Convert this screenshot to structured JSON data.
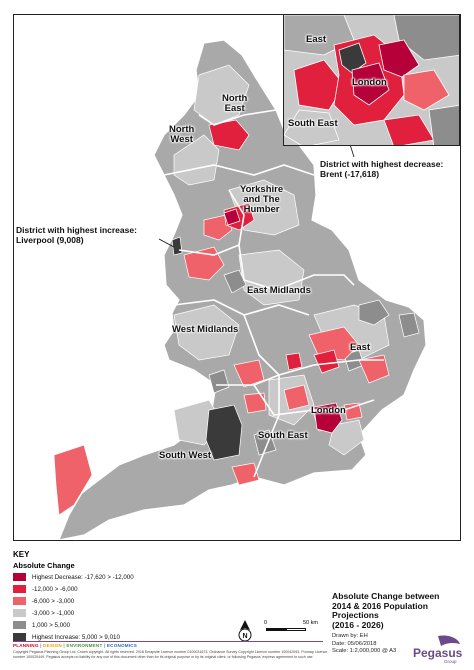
{
  "regions": {
    "north_east": "North\nEast",
    "north_west": "North\nWest",
    "yorkshire": "Yorkshire\nand The\nHumber",
    "east_midlands": "East Midlands",
    "west_midlands": "West Midlands",
    "east": "East",
    "london": "London",
    "south_east": "South East",
    "south_west": "South West"
  },
  "inset_labels": {
    "east": "East",
    "london": "London",
    "south_east": "South East"
  },
  "callouts": {
    "decrease": "District with highest decrease:\nBrent (-17,618)",
    "increase": "District with highest increase:\nLiverpool (9,008)"
  },
  "key": {
    "title": "KEY",
    "subtitle": "Absolute Change",
    "items": [
      {
        "label": "Highest Decrease: -17,620 > -12,000",
        "color": "#b5003a"
      },
      {
        "label": "-12,000 > -6,000",
        "color": "#e0203d"
      },
      {
        "label": "-6,000 > -3,000",
        "color": "#f0626a"
      },
      {
        "label": "-3,000 > -1,000",
        "color": "#c9c9c9"
      },
      {
        "label": "1,000 > 5,000",
        "color": "#8d8d8d"
      },
      {
        "label": "Highest Increase: 5,000 > 9,010",
        "color": "#3a3a3a"
      }
    ]
  },
  "title_block": {
    "title": "Absolute Change between\n2014 & 2016 Population\nProjections\n(2016 - 2026)",
    "drawn_by": "Drawn by:  EH",
    "date": "Date:   05/06/2018",
    "scale": "Scale:  1:2,000,000 @ A3"
  },
  "scale_bar": {
    "zero": "0",
    "end": "50 km"
  },
  "north_arrow": "N",
  "footer": {
    "brands": [
      "PLANNING",
      "DESIGN",
      "ENVIRONMENT",
      "ECONOMICS"
    ],
    "fine_print": "Copyright Pegasus Planning Group Ltd. Crown copyright. All rights reserved. 2018 Emapsite Licence number 0100031673. Ordnance Survey Copyright Licence number 100042093. Promap Licence number 100020449. Pegasus accepts no liability for any use of this document other than for its original purpose or by its original client, or following Pegasus' express agreement to such use."
  },
  "logo": {
    "name": "Pegasus",
    "sub": "Group"
  },
  "colors": {
    "decrease_high": "#b5003a",
    "decrease_mid": "#e0203d",
    "decrease_low": "#f0626a",
    "neutral": "#c9c9c9",
    "increase": "#8d8d8d",
    "increase_high": "#3a3a3a",
    "border": "#ffffff",
    "brand": "#6a4a8a"
  }
}
